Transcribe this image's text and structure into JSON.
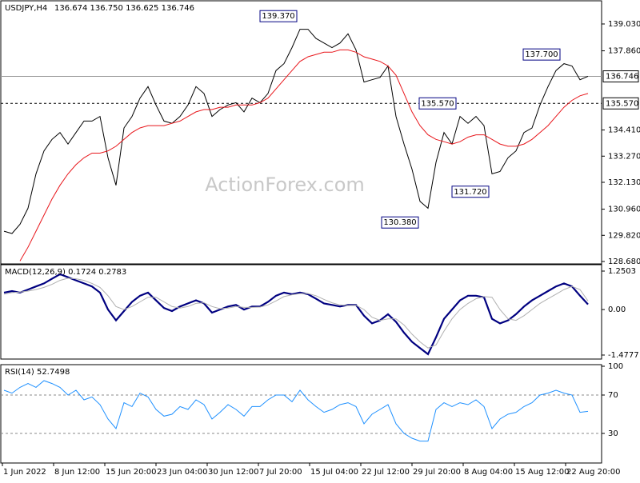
{
  "chart_data": [
    {
      "type": "line",
      "title": "USDJPY,H4",
      "subtitle": "136.674 136.750 136.625 136.746",
      "watermark": "ActionForex.com",
      "ylim": [
        128.61,
        139.97
      ],
      "yticks": [
        {
          "value": 139.03,
          "label": "139.030"
        },
        {
          "value": 137.86,
          "label": "137.860"
        },
        {
          "value": 134.41,
          "label": "134.410"
        },
        {
          "value": 133.27,
          "label": "133.270"
        },
        {
          "value": 132.13,
          "label": "132.130"
        },
        {
          "value": 130.96,
          "label": "130.960"
        },
        {
          "value": 129.82,
          "label": "129.820"
        },
        {
          "value": 128.68,
          "label": "128.680"
        }
      ],
      "hlines": [
        {
          "value": 136.746,
          "label": "136.746",
          "style": "solid"
        },
        {
          "value": 135.57,
          "label": "135.570",
          "style": "dashed"
        }
      ],
      "annotations": [
        {
          "value": 139.37,
          "label": "139.370"
        },
        {
          "value": 137.7,
          "label": "137.700"
        },
        {
          "value": 135.57,
          "label": "135.570"
        },
        {
          "value": 131.72,
          "label": "131.720"
        },
        {
          "value": 130.38,
          "label": "130.380"
        }
      ],
      "series": [
        {
          "color": "#000000",
          "width": 1,
          "values": [
            130.0,
            129.9,
            130.3,
            131.0,
            132.5,
            133.5,
            134.0,
            134.3,
            133.8,
            134.3,
            134.8,
            134.8,
            135.0,
            133.2,
            132.0,
            134.5,
            135.0,
            135.8,
            136.3,
            135.5,
            134.8,
            134.7,
            135.0,
            135.5,
            136.3,
            136.0,
            135.0,
            135.3,
            135.5,
            135.6,
            135.2,
            135.8,
            135.6,
            136.0,
            137.0,
            137.3,
            138.0,
            138.8,
            138.8,
            138.4,
            138.2,
            138.0,
            138.2,
            138.6,
            137.9,
            136.5,
            136.6,
            136.7,
            137.2,
            135.0,
            133.8,
            132.7,
            131.3,
            131.0,
            133.0,
            134.3,
            133.8,
            135.0,
            134.7,
            135.0,
            134.6,
            132.5,
            132.6,
            133.2,
            133.5,
            134.3,
            134.5,
            135.5,
            136.3,
            137.0,
            137.3,
            137.2,
            136.6,
            136.75
          ]
        },
        {
          "color": "#e8161b",
          "width": 1,
          "values": [
            null,
            null,
            128.7,
            129.3,
            130.0,
            130.7,
            131.4,
            132.0,
            132.5,
            132.9,
            133.2,
            133.4,
            133.4,
            133.5,
            133.7,
            134.0,
            134.3,
            134.5,
            134.6,
            134.6,
            134.6,
            134.7,
            134.8,
            135.0,
            135.2,
            135.3,
            135.3,
            135.4,
            135.4,
            135.5,
            135.5,
            135.5,
            135.6,
            135.8,
            136.2,
            136.6,
            137.0,
            137.4,
            137.6,
            137.7,
            137.8,
            137.8,
            137.9,
            137.9,
            137.8,
            137.6,
            137.5,
            137.4,
            137.2,
            136.8,
            136.0,
            135.2,
            134.6,
            134.2,
            134.0,
            133.9,
            133.8,
            133.9,
            134.1,
            134.2,
            134.2,
            134.0,
            133.8,
            133.7,
            133.7,
            133.8,
            134.0,
            134.3,
            134.6,
            135.0,
            135.4,
            135.7,
            135.9,
            136.0
          ]
        }
      ]
    },
    {
      "type": "line",
      "title": "MACD(12,26,9) 0.1724 0.2783",
      "ylim": [
        -1.582,
        1.406
      ],
      "yticks": [
        1.2503,
        {
          "value": 0,
          "label": "0.00"
        },
        -1.4777
      ],
      "series": [
        {
          "color": "#000080",
          "width": 2.2,
          "values": [
            0.55,
            0.6,
            0.55,
            0.65,
            0.75,
            0.85,
            1.0,
            1.15,
            1.05,
            0.95,
            0.85,
            0.75,
            0.55,
            0.0,
            -0.35,
            -0.05,
            0.25,
            0.45,
            0.55,
            0.3,
            0.05,
            -0.05,
            0.1,
            0.2,
            0.3,
            0.2,
            -0.1,
            0.0,
            0.1,
            0.15,
            0.0,
            0.1,
            0.1,
            0.25,
            0.45,
            0.55,
            0.5,
            0.55,
            0.5,
            0.35,
            0.2,
            0.15,
            0.1,
            0.15,
            0.15,
            -0.2,
            -0.45,
            -0.35,
            -0.15,
            -0.4,
            -0.75,
            -1.05,
            -1.25,
            -1.45,
            -0.9,
            -0.3,
            0.0,
            0.3,
            0.45,
            0.45,
            0.4,
            -0.3,
            -0.45,
            -0.35,
            -0.15,
            0.1,
            0.3,
            0.45,
            0.6,
            0.75,
            0.85,
            0.75,
            0.45,
            0.17
          ]
        },
        {
          "color": "#b0b0b0",
          "width": 1,
          "values": [
            0.5,
            0.55,
            0.57,
            0.6,
            0.65,
            0.72,
            0.82,
            0.95,
            1.02,
            1.0,
            0.95,
            0.85,
            0.72,
            0.45,
            0.1,
            0.0,
            0.1,
            0.25,
            0.4,
            0.4,
            0.25,
            0.1,
            0.05,
            0.1,
            0.2,
            0.22,
            0.1,
            0.03,
            0.05,
            0.1,
            0.07,
            0.07,
            0.08,
            0.15,
            0.28,
            0.42,
            0.48,
            0.52,
            0.52,
            0.45,
            0.33,
            0.22,
            0.15,
            0.13,
            0.14,
            0.0,
            -0.25,
            -0.35,
            -0.3,
            -0.3,
            -0.5,
            -0.8,
            -1.05,
            -1.25,
            -1.15,
            -0.7,
            -0.3,
            0.0,
            0.2,
            0.35,
            0.42,
            0.4,
            0.0,
            -0.3,
            -0.35,
            -0.2,
            0.0,
            0.2,
            0.35,
            0.5,
            0.65,
            0.75,
            0.65,
            0.28
          ]
        }
      ]
    },
    {
      "type": "line",
      "title": "RSI(14) 52.7498",
      "ylim": [
        0,
        100
      ],
      "yticks": [
        100,
        70,
        30
      ],
      "levels": [
        70,
        30
      ],
      "series": [
        {
          "color": "#1e90ff",
          "width": 1,
          "values": [
            75,
            72,
            78,
            82,
            78,
            85,
            82,
            78,
            70,
            75,
            65,
            68,
            60,
            45,
            35,
            62,
            58,
            72,
            68,
            55,
            48,
            50,
            58,
            55,
            65,
            60,
            45,
            52,
            60,
            55,
            48,
            58,
            58,
            65,
            70,
            70,
            63,
            75,
            65,
            58,
            52,
            55,
            60,
            62,
            58,
            40,
            50,
            55,
            60,
            40,
            30,
            25,
            22,
            22,
            55,
            62,
            58,
            62,
            60,
            65,
            58,
            35,
            45,
            50,
            52,
            58,
            62,
            70,
            72,
            75,
            72,
            70,
            52,
            53
          ]
        }
      ]
    }
  ],
  "x_axis": {
    "labels": [
      "1 Jun 2022",
      "8 Jun 12:00",
      "15 Jun 20:00",
      "23 Jun 04:00",
      "30 Jun 12:00",
      "7 Jul 20:00",
      "15 Jul 04:00",
      "22 Jul 12:00",
      "29 Jul 20:00",
      "8 Aug 04:00",
      "15 Aug 12:00",
      "22 Aug 20:00"
    ]
  }
}
